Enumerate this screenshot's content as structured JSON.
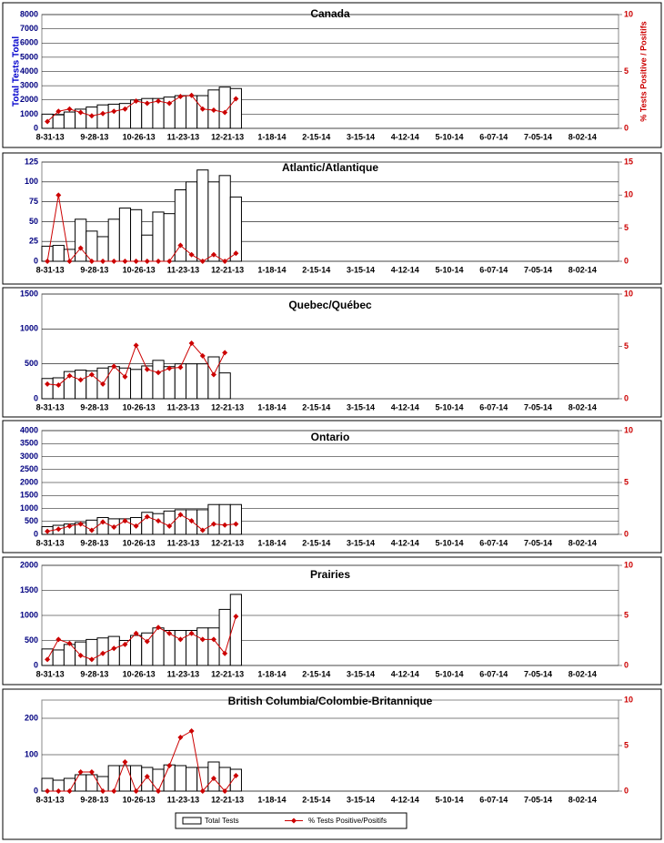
{
  "chart_data": [
    {
      "type": "combo",
      "title": "Canada",
      "ylabel": "Total Tests Total",
      "y2label": "% Tests Positive / Positifs",
      "categories": [
        "8-31-13",
        null,
        null,
        null,
        "9-28-13",
        null,
        null,
        null,
        "10-26-13",
        null,
        null,
        null,
        "11-23-13",
        null,
        null,
        null,
        "12-21-13",
        null,
        null,
        null,
        "1-18-14",
        null,
        null,
        null,
        "2-15-14",
        null,
        null,
        null,
        "3-15-14",
        null,
        null,
        null,
        "4-12-14",
        null,
        null,
        null,
        "5-10-14",
        null,
        null,
        null,
        "6-07-14",
        null,
        null,
        null,
        "7-05-14",
        null,
        null,
        null,
        "8-02-14",
        null,
        null,
        null
      ],
      "ylim": [
        0,
        8000
      ],
      "yticks": [
        0,
        1000,
        2000,
        3000,
        4000,
        5000,
        6000,
        7000,
        8000
      ],
      "y2lim": [
        0,
        10
      ],
      "y2ticks": [
        0,
        5,
        10
      ],
      "grid": true,
      "series": [
        {
          "color": "#000000",
          "values": [
            1000,
            950,
            1150,
            1350,
            1500,
            1650,
            1700,
            1750,
            2000,
            2100,
            2100,
            2200,
            2300,
            2300,
            2300,
            2700,
            2900,
            2800,
            null,
            null,
            null,
            null,
            null,
            null,
            null,
            null,
            null,
            null,
            null,
            null,
            null,
            null,
            null,
            null,
            null,
            null,
            null,
            null,
            null,
            null,
            null,
            null,
            null,
            null,
            null,
            null,
            null,
            null,
            null,
            null,
            null,
            null
          ]
        },
        {
          "color": "#cc0000",
          "axis": "y2",
          "values": [
            0.6,
            1.5,
            1.7,
            1.4,
            1.1,
            1.3,
            1.5,
            1.7,
            2.4,
            2.2,
            2.4,
            2.2,
            2.8,
            2.9,
            1.7,
            1.6,
            1.4,
            2.6,
            null,
            null,
            null,
            null,
            null,
            null,
            null,
            null,
            null,
            null,
            null,
            null,
            null,
            null,
            null,
            null,
            null,
            null,
            null,
            null,
            null,
            null,
            null,
            null,
            null,
            null,
            null,
            null,
            null,
            null,
            null,
            null,
            null,
            null
          ]
        }
      ]
    },
    {
      "type": "combo",
      "title": "Atlantic/Atlantique",
      "categories": [
        "8-31-13",
        null,
        null,
        null,
        "9-28-13",
        null,
        null,
        null,
        "10-26-13",
        null,
        null,
        null,
        "11-23-13",
        null,
        null,
        null,
        "12-21-13",
        null,
        null,
        null,
        "1-18-14",
        null,
        null,
        null,
        "2-15-14",
        null,
        null,
        null,
        "3-15-14",
        null,
        null,
        null,
        "4-12-14",
        null,
        null,
        null,
        "5-10-14",
        null,
        null,
        null,
        "6-07-14",
        null,
        null,
        null,
        "7-05-14",
        null,
        null,
        null,
        "8-02-14",
        null,
        null,
        null
      ],
      "ylim": [
        0,
        125
      ],
      "yticks": [
        0,
        25,
        50,
        75,
        100,
        125
      ],
      "y2lim": [
        0,
        15
      ],
      "y2ticks": [
        0,
        5,
        10,
        15
      ],
      "grid": true,
      "series": [
        {
          "color": "#000000",
          "values": [
            19,
            20,
            15,
            53,
            38,
            31,
            53,
            67,
            65,
            33,
            62,
            60,
            90,
            100,
            115,
            100,
            108,
            81,
            null,
            null,
            null,
            null,
            null,
            null,
            null,
            null,
            null,
            null,
            null,
            null,
            null,
            null,
            null,
            null,
            null,
            null,
            null,
            null,
            null,
            null,
            null,
            null,
            null,
            null,
            null,
            null,
            null,
            null,
            null,
            null,
            null,
            null
          ]
        },
        {
          "color": "#cc0000",
          "axis": "y2",
          "values": [
            0,
            10,
            0,
            2,
            0,
            0,
            0,
            0,
            0,
            0,
            0,
            0,
            2.4,
            1,
            0,
            1,
            0,
            1.2,
            null,
            null,
            null,
            null,
            null,
            null,
            null,
            null,
            null,
            null,
            null,
            null,
            null,
            null,
            null,
            null,
            null,
            null,
            null,
            null,
            null,
            null,
            null,
            null,
            null,
            null,
            null,
            null,
            null,
            null,
            null,
            null,
            null,
            null
          ]
        }
      ]
    },
    {
      "type": "combo",
      "title": "Quebec/Québec",
      "categories": [
        "8-31-13",
        null,
        null,
        null,
        "9-28-13",
        null,
        null,
        null,
        "10-26-13",
        null,
        null,
        null,
        "11-23-13",
        null,
        null,
        null,
        "12-21-13",
        null,
        null,
        null,
        "1-18-14",
        null,
        null,
        null,
        "2-15-14",
        null,
        null,
        null,
        "3-15-14",
        null,
        null,
        null,
        "4-12-14",
        null,
        null,
        null,
        "5-10-14",
        null,
        null,
        null,
        "6-07-14",
        null,
        null,
        null,
        "7-05-14",
        null,
        null,
        null,
        "8-02-14",
        null,
        null,
        null
      ],
      "ylim": [
        0,
        1500
      ],
      "yticks": [
        0,
        500,
        1000,
        1500
      ],
      "y2lim": [
        0,
        10
      ],
      "y2ticks": [
        0,
        5,
        10
      ],
      "grid": true,
      "series": [
        {
          "color": "#000000",
          "values": [
            290,
            300,
            390,
            410,
            400,
            440,
            460,
            440,
            420,
            470,
            550,
            460,
            500,
            500,
            500,
            600,
            370,
            null,
            null,
            null,
            null,
            null,
            null,
            null,
            null,
            null,
            null,
            null,
            null,
            null,
            null,
            null,
            null,
            null,
            null,
            null,
            null,
            null,
            null,
            null,
            null,
            null,
            null,
            null,
            null,
            null,
            null,
            null,
            null,
            null,
            null,
            null
          ]
        },
        {
          "color": "#cc0000",
          "axis": "y2",
          "values": [
            1.4,
            1.3,
            2.2,
            1.8,
            2.3,
            1.4,
            3.1,
            2.1,
            5.1,
            2.8,
            2.5,
            2.9,
            3.0,
            5.3,
            4.1,
            2.3,
            4.4,
            null,
            null,
            null,
            null,
            null,
            null,
            null,
            null,
            null,
            null,
            null,
            null,
            null,
            null,
            null,
            null,
            null,
            null,
            null,
            null,
            null,
            null,
            null,
            null,
            null,
            null,
            null,
            null,
            null,
            null,
            null,
            null,
            null,
            null,
            null
          ]
        }
      ]
    },
    {
      "type": "combo",
      "title": "Ontario",
      "categories": [
        "8-31-13",
        null,
        null,
        null,
        "9-28-13",
        null,
        null,
        null,
        "10-26-13",
        null,
        null,
        null,
        "11-23-13",
        null,
        null,
        null,
        "12-21-13",
        null,
        null,
        null,
        "1-18-14",
        null,
        null,
        null,
        "2-15-14",
        null,
        null,
        null,
        "3-15-14",
        null,
        null,
        null,
        "4-12-14",
        null,
        null,
        null,
        "5-10-14",
        null,
        null,
        null,
        "6-07-14",
        null,
        null,
        null,
        "7-05-14",
        null,
        null,
        null,
        "8-02-14",
        null,
        null,
        null
      ],
      "ylim": [
        0,
        4000
      ],
      "yticks": [
        0,
        500,
        1000,
        1500,
        2000,
        2500,
        3000,
        3500,
        4000
      ],
      "y2lim": [
        0,
        10
      ],
      "y2ticks": [
        0,
        5,
        10
      ],
      "grid": true,
      "series": [
        {
          "color": "#000000",
          "values": [
            300,
            350,
            400,
            450,
            550,
            650,
            600,
            600,
            650,
            850,
            800,
            900,
            950,
            950,
            950,
            1150,
            1150,
            1150,
            null,
            null,
            null,
            null,
            null,
            null,
            null,
            null,
            null,
            null,
            null,
            null,
            null,
            null,
            null,
            null,
            null,
            null,
            null,
            null,
            null,
            null,
            null,
            null,
            null,
            null,
            null,
            null,
            null,
            null,
            null,
            null,
            null,
            null
          ]
        },
        {
          "color": "#cc0000",
          "axis": "y2",
          "values": [
            0.3,
            0.5,
            0.8,
            1.0,
            0.4,
            1.2,
            0.7,
            1.3,
            0.8,
            1.7,
            1.3,
            0.8,
            1.9,
            1.3,
            0.4,
            1.0,
            0.9,
            1.0,
            null,
            null,
            null,
            null,
            null,
            null,
            null,
            null,
            null,
            null,
            null,
            null,
            null,
            null,
            null,
            null,
            null,
            null,
            null,
            null,
            null,
            null,
            null,
            null,
            null,
            null,
            null,
            null,
            null,
            null,
            null,
            null,
            null,
            null
          ]
        }
      ]
    },
    {
      "type": "combo",
      "title": "Prairies",
      "categories": [
        "8-31-13",
        null,
        null,
        null,
        "9-28-13",
        null,
        null,
        null,
        "10-26-13",
        null,
        null,
        null,
        "11-23-13",
        null,
        null,
        null,
        "12-21-13",
        null,
        null,
        null,
        "1-18-14",
        null,
        null,
        null,
        "2-15-14",
        null,
        null,
        null,
        "3-15-14",
        null,
        null,
        null,
        "4-12-14",
        null,
        null,
        null,
        "5-10-14",
        null,
        null,
        null,
        "6-07-14",
        null,
        null,
        null,
        "7-05-14",
        null,
        null,
        null,
        "8-02-14",
        null,
        null,
        null
      ],
      "ylim": [
        0,
        2000
      ],
      "yticks": [
        0,
        500,
        1000,
        1500,
        2000
      ],
      "y2lim": [
        0,
        10
      ],
      "y2ticks": [
        0,
        5,
        10
      ],
      "grid": true,
      "series": [
        {
          "color": "#000000",
          "values": [
            330,
            310,
            420,
            470,
            520,
            550,
            580,
            500,
            600,
            650,
            750,
            700,
            700,
            700,
            750,
            750,
            1120,
            1420,
            null,
            null,
            null,
            null,
            null,
            null,
            null,
            null,
            null,
            null,
            null,
            null,
            null,
            null,
            null,
            null,
            null,
            null,
            null,
            null,
            null,
            null,
            null,
            null,
            null,
            null,
            null,
            null,
            null,
            null,
            null,
            null,
            null,
            null
          ]
        },
        {
          "color": "#cc0000",
          "axis": "y2",
          "values": [
            0.6,
            2.6,
            2.2,
            1.0,
            0.6,
            1.2,
            1.7,
            2.1,
            3.2,
            2.4,
            3.8,
            3.2,
            2.6,
            3.2,
            2.6,
            2.6,
            1.2,
            4.9,
            null,
            null,
            null,
            null,
            null,
            null,
            null,
            null,
            null,
            null,
            null,
            null,
            null,
            null,
            null,
            null,
            null,
            null,
            null,
            null,
            null,
            null,
            null,
            null,
            null,
            null,
            null,
            null,
            null,
            null,
            null,
            null,
            null,
            null
          ]
        }
      ]
    },
    {
      "type": "combo",
      "title": "British Columbia/Colombie-Britannique",
      "categories": [
        "8-31-13",
        null,
        null,
        null,
        "9-28-13",
        null,
        null,
        null,
        "10-26-13",
        null,
        null,
        null,
        "11-23-13",
        null,
        null,
        null,
        "12-21-13",
        null,
        null,
        null,
        "1-18-14",
        null,
        null,
        null,
        "2-15-14",
        null,
        null,
        null,
        "3-15-14",
        null,
        null,
        null,
        "4-12-14",
        null,
        null,
        null,
        "5-10-14",
        null,
        null,
        null,
        "6-07-14",
        null,
        null,
        null,
        "7-05-14",
        null,
        null,
        null,
        "8-02-14",
        null,
        null,
        null
      ],
      "ylim": [
        0,
        250
      ],
      "yticks": [
        0,
        100,
        200
      ],
      "y2lim": [
        0,
        10
      ],
      "y2ticks": [
        0,
        5,
        10
      ],
      "grid": true,
      "series": [
        {
          "name": "Total Tests",
          "color": "#000000",
          "values": [
            35,
            30,
            35,
            45,
            45,
            40,
            70,
            70,
            70,
            65,
            60,
            72,
            70,
            65,
            65,
            80,
            65,
            60,
            null,
            null,
            null,
            null,
            null,
            null,
            null,
            null,
            null,
            null,
            null,
            null,
            null,
            null,
            null,
            null,
            null,
            null,
            null,
            null,
            null,
            null,
            null,
            null,
            null,
            null,
            null,
            null,
            null,
            null,
            null,
            null,
            null,
            null
          ]
        },
        {
          "name": "% Tests Positive/Positifs",
          "color": "#cc0000",
          "axis": "y2",
          "values": [
            0,
            0,
            0,
            2.1,
            2.1,
            0,
            0,
            3.2,
            0,
            1.6,
            0,
            2.8,
            5.9,
            6.6,
            0,
            1.4,
            0,
            1.7,
            null,
            null,
            null,
            null,
            null,
            null,
            null,
            null,
            null,
            null,
            null,
            null,
            null,
            null,
            null,
            null,
            null,
            null,
            null,
            null,
            null,
            null,
            null,
            null,
            null,
            null,
            null,
            null,
            null,
            null,
            null,
            null,
            null,
            null
          ]
        }
      ]
    }
  ]
}
